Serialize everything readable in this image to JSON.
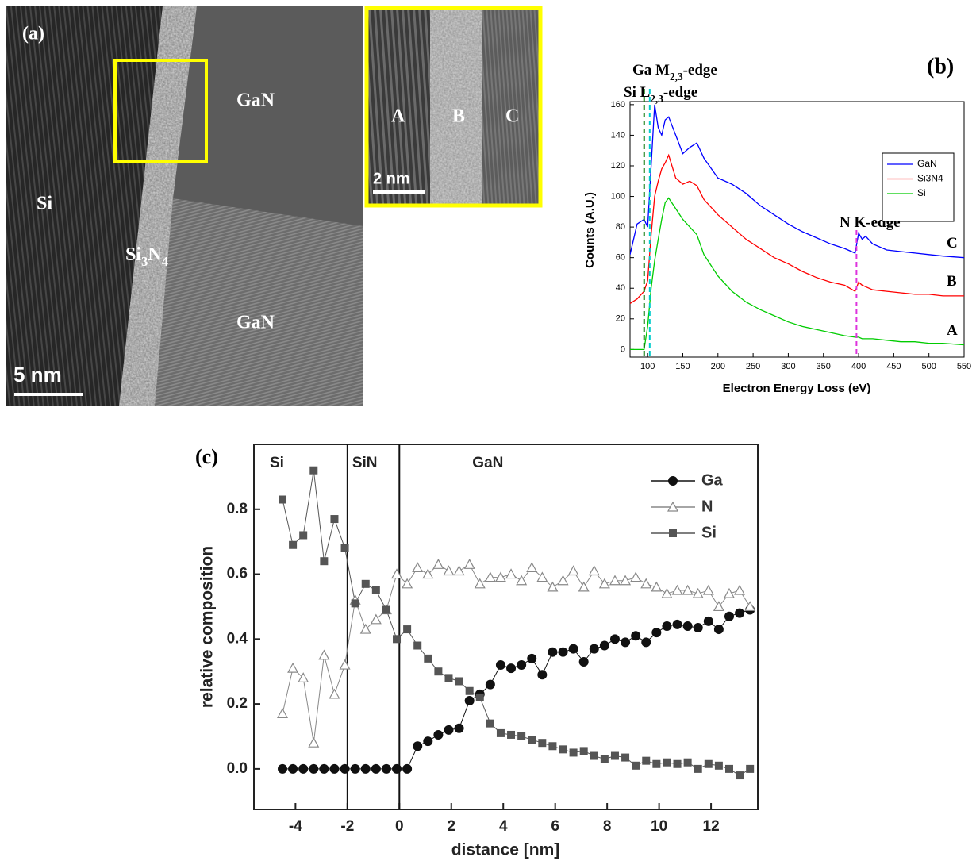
{
  "panel_a": {
    "label": "(a)",
    "regions": [
      "GaN",
      "Si",
      "Si3N4",
      "GaN"
    ],
    "scale_bar": "5 nm",
    "inset": {
      "regions": [
        "A",
        "B",
        "C"
      ],
      "scale_bar": "2 nm"
    }
  },
  "chart_data": [
    {
      "type": "line",
      "panel_label": "(b)",
      "xlabel": "Electron Energy Loss (eV)",
      "ylabel": "Counts (A.U.)",
      "x": [
        75,
        85,
        95,
        100,
        105,
        110,
        115,
        120,
        125,
        130,
        140,
        150,
        160,
        170,
        180,
        200,
        220,
        240,
        260,
        280,
        300,
        320,
        340,
        360,
        380,
        395,
        400,
        405,
        410,
        420,
        440,
        460,
        480,
        500,
        520,
        550
      ],
      "series": [
        {
          "name": "GaN",
          "color": "#0000ff",
          "label": "C",
          "values": [
            62,
            82,
            85,
            80,
            120,
            160,
            145,
            140,
            150,
            152,
            140,
            128,
            132,
            135,
            125,
            112,
            108,
            102,
            94,
            88,
            82,
            77,
            73,
            69,
            66,
            63,
            76,
            72,
            74,
            69,
            65,
            64,
            63,
            62,
            61,
            60
          ]
        },
        {
          "name": "Si3N4",
          "color": "#ff0000",
          "label": "B",
          "values": [
            30,
            33,
            38,
            45,
            75,
            100,
            110,
            118,
            122,
            127,
            112,
            108,
            110,
            107,
            98,
            88,
            80,
            72,
            66,
            60,
            56,
            51,
            47,
            44,
            42,
            38,
            44,
            42,
            41,
            39,
            38,
            37,
            36,
            36,
            35,
            35
          ]
        },
        {
          "name": "Si",
          "color": "#00cc00",
          "label": "A",
          "values": [
            0,
            0,
            0,
            15,
            40,
            58,
            72,
            85,
            96,
            99,
            92,
            85,
            80,
            75,
            62,
            48,
            38,
            31,
            26,
            22,
            18,
            15,
            13,
            11,
            9,
            8,
            8,
            7,
            7,
            7,
            6,
            5,
            5,
            4,
            4,
            3
          ]
        }
      ],
      "edges": [
        {
          "label": "Si L2,3-edge",
          "x": 95,
          "color": "#0a7a0a"
        },
        {
          "label": "Ga M2,3-edge",
          "x": 103,
          "color": "#00cccc"
        },
        {
          "label": "N K-edge",
          "x": 397,
          "color": "#dd33dd"
        }
      ],
      "xlim": [
        75,
        550
      ],
      "ylim": [
        -5,
        162
      ],
      "xticks": [
        100,
        150,
        200,
        250,
        300,
        350,
        400,
        450,
        500,
        550
      ],
      "yticks": [
        0,
        20,
        40,
        60,
        80,
        100,
        120,
        140,
        160
      ],
      "grid": false,
      "legend": "right"
    },
    {
      "type": "line",
      "panel_label": "(c)",
      "xlabel": "distance [nm]",
      "ylabel": "relative composition",
      "regions": [
        "Si",
        "SiN",
        "GaN"
      ],
      "boundaries": [
        -2,
        0
      ],
      "x": [
        -4.5,
        -4.1,
        -3.7,
        -3.3,
        -2.9,
        -2.5,
        -2.1,
        -1.7,
        -1.3,
        -0.9,
        -0.5,
        -0.1,
        0.3,
        0.7,
        1.1,
        1.5,
        1.9,
        2.3,
        2.7,
        3.1,
        3.5,
        3.9,
        4.3,
        4.7,
        5.1,
        5.5,
        5.9,
        6.3,
        6.7,
        7.1,
        7.5,
        7.9,
        8.3,
        8.7,
        9.1,
        9.5,
        9.9,
        10.3,
        10.7,
        11.1,
        11.5,
        11.9,
        12.3,
        12.7,
        13.1,
        13.5
      ],
      "series": [
        {
          "name": "Ga",
          "color": "#111111",
          "marker": "circle",
          "filled": true,
          "values": [
            0,
            0,
            0,
            0,
            0,
            0,
            0,
            0,
            0,
            0,
            0,
            0,
            0,
            0.07,
            0.085,
            0.105,
            0.12,
            0.125,
            0.21,
            0.23,
            0.26,
            0.32,
            0.31,
            0.32,
            0.34,
            0.29,
            0.36,
            0.36,
            0.37,
            0.33,
            0.37,
            0.38,
            0.4,
            0.39,
            0.41,
            0.39,
            0.42,
            0.44,
            0.445,
            0.44,
            0.435,
            0.455,
            0.43,
            0.47,
            0.48,
            0.49
          ]
        },
        {
          "name": "N",
          "color": "#888888",
          "marker": "triangle",
          "filled": false,
          "values": [
            0.17,
            0.31,
            0.28,
            0.08,
            0.35,
            0.23,
            0.32,
            0.52,
            0.43,
            0.46,
            0.49,
            0.6,
            0.57,
            0.62,
            0.6,
            0.63,
            0.61,
            0.61,
            0.63,
            0.57,
            0.59,
            0.59,
            0.6,
            0.58,
            0.62,
            0.59,
            0.56,
            0.58,
            0.61,
            0.56,
            0.61,
            0.57,
            0.58,
            0.58,
            0.59,
            0.57,
            0.56,
            0.54,
            0.55,
            0.55,
            0.54,
            0.55,
            0.5,
            0.54,
            0.55,
            0.5
          ]
        },
        {
          "name": "Si",
          "color": "#555555",
          "marker": "square",
          "filled": true,
          "values": [
            0.83,
            0.69,
            0.72,
            0.92,
            0.64,
            0.77,
            0.68,
            0.51,
            0.57,
            0.55,
            0.49,
            0.4,
            0.43,
            0.38,
            0.34,
            0.3,
            0.28,
            0.27,
            0.24,
            0.22,
            0.14,
            0.11,
            0.105,
            0.1,
            0.09,
            0.08,
            0.07,
            0.06,
            0.05,
            0.055,
            0.04,
            0.03,
            0.04,
            0.035,
            0.01,
            0.025,
            0.015,
            0.02,
            0.015,
            0.02,
            0,
            0.015,
            0.01,
            0,
            -0.02,
            0
          ]
        }
      ],
      "xlim": [
        -5.6,
        13.8
      ],
      "ylim": [
        -0.125,
        1.0
      ],
      "xticks": [
        -4,
        -2,
        0,
        2,
        4,
        6,
        8,
        10,
        12
      ],
      "yticks": [
        {
          "value": 0,
          "label": "0.0"
        },
        0.2,
        0.4,
        0.6,
        0.8
      ],
      "grid": false,
      "legend": "upper right"
    }
  ]
}
